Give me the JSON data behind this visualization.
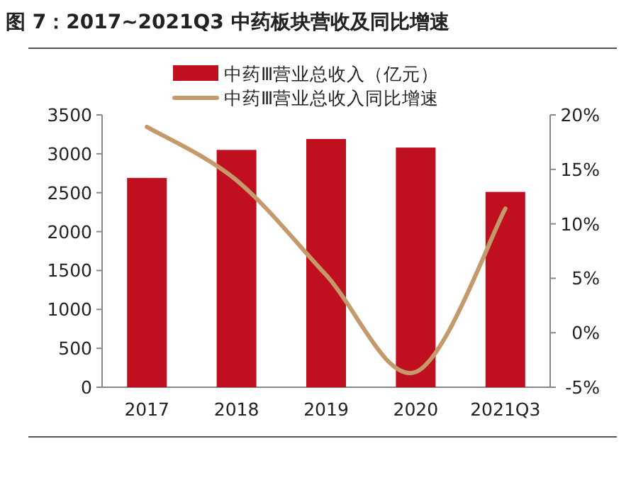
{
  "chart_data": {
    "type": "bar",
    "title": "图 7：2017~2021Q3 中药板块营收及同比增速",
    "categories": [
      "2017",
      "2018",
      "2019",
      "2020",
      "2021Q3"
    ],
    "series": [
      {
        "name": "中药Ⅲ营业总收入（亿元）",
        "color": "#c00f1e",
        "values": [
          2690,
          3050,
          3190,
          3080,
          2510
        ]
      },
      {
        "name": "中药Ⅲ营业总收入同比增速",
        "type": "line",
        "axis": "y2",
        "color": "#c49a6c",
        "values": [
          18.9,
          14.0,
          5.3,
          -3.6,
          11.4
        ]
      }
    ],
    "ylim": [
      0,
      3500
    ],
    "yticks": [
      0,
      500,
      1000,
      1500,
      2000,
      2500,
      3000,
      3500
    ],
    "y2lim": [
      -5,
      20
    ],
    "y2ticks": [
      {
        "value": -5,
        "label": "-5%"
      },
      {
        "value": 0,
        "label": "0%"
      },
      {
        "value": 5,
        "label": "5%"
      },
      {
        "value": 10,
        "label": "10%"
      },
      {
        "value": 15,
        "label": "15%"
      },
      {
        "value": 20,
        "label": "20%"
      }
    ],
    "legend": "top",
    "grid": false
  }
}
